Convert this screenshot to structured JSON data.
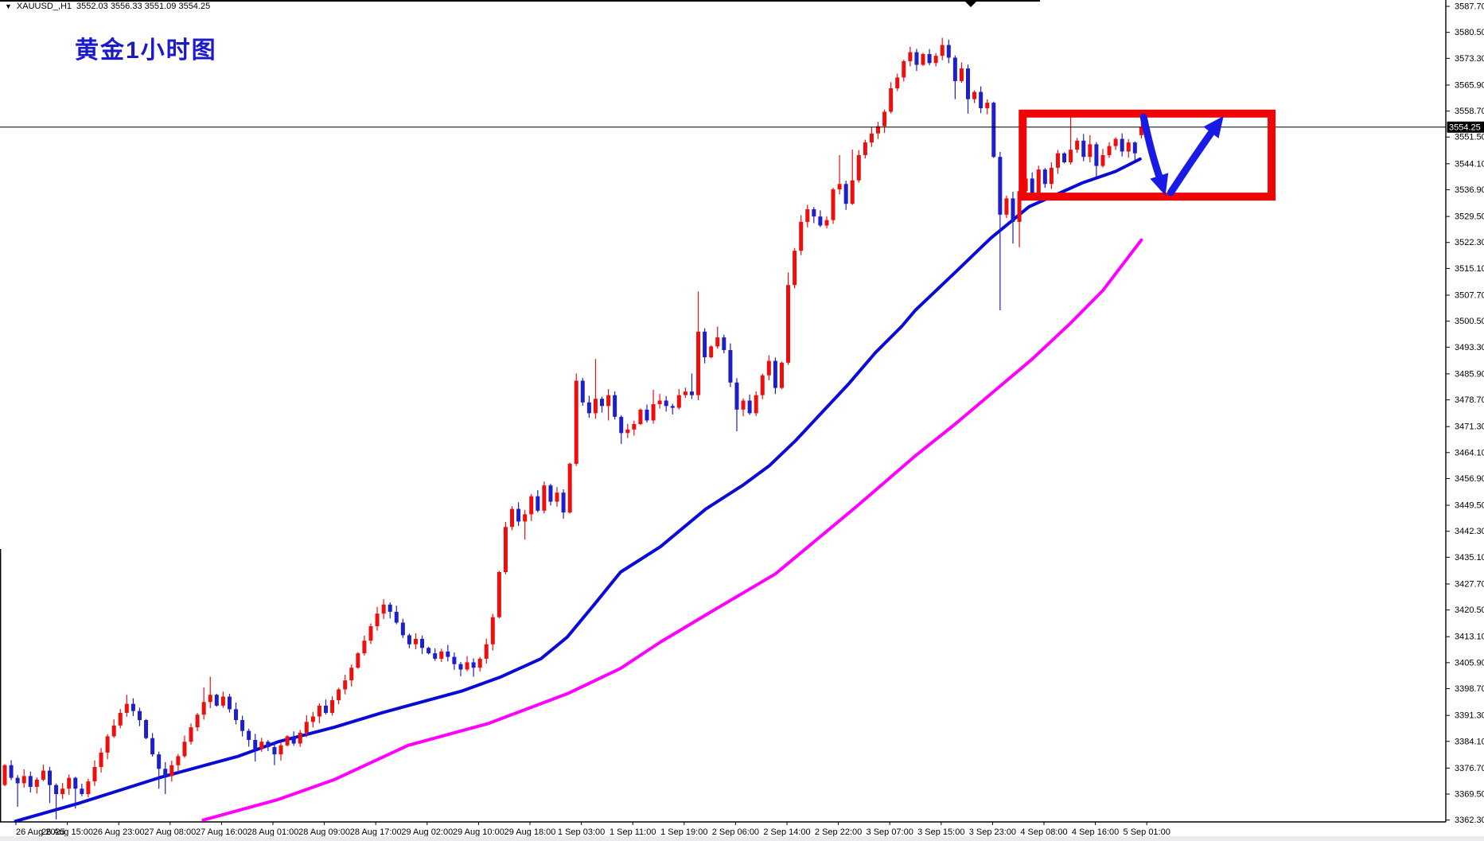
{
  "window": {
    "symbol": "XAUUSD_,H1",
    "ohlc_text": "3552.03 3556.33 3551.09 3554.25",
    "title_annotation": "黄金1小时图",
    "current_price": "3554.25",
    "dropdown_icon": "▼"
  },
  "axes": {
    "price_ticks": [
      "3587.70",
      "3580.50",
      "3573.30",
      "3565.90",
      "3558.70",
      "3551.50",
      "3544.10",
      "3536.90",
      "3529.50",
      "3522.30",
      "3515.10",
      "3507.70",
      "3500.50",
      "3493.30",
      "3485.90",
      "3478.70",
      "3471.30",
      "3464.10",
      "3456.90",
      "3449.50",
      "3442.30",
      "3435.10",
      "3427.70",
      "3420.50",
      "3413.10",
      "3405.90",
      "3398.70",
      "3391.30",
      "3384.10",
      "3376.70",
      "3369.50",
      "3362.30"
    ],
    "time_labels": [
      "26 Aug 2025",
      "26 Aug 15:00",
      "26 Aug 23:00",
      "27 Aug 08:00",
      "27 Aug 16:00",
      "28 Aug 01:00",
      "28 Aug 09:00",
      "28 Aug 17:00",
      "29 Aug 02:00",
      "29 Aug 10:00",
      "29 Aug 18:00",
      "1 Sep 03:00",
      "1 Sep 11:00",
      "1 Sep 19:00",
      "2 Sep 06:00",
      "2 Sep 14:00",
      "2 Sep 22:00",
      "3 Sep 07:00",
      "3 Sep 15:00",
      "3 Sep 23:00",
      "4 Sep 08:00",
      "4 Sep 16:00",
      "5 Sep 01:00"
    ]
  },
  "chart_data": {
    "type": "candlestick",
    "symbol": "XAUUSD",
    "timeframe": "H1",
    "title": "黄金1小时图",
    "price_axis_range": [
      3362.3,
      3587.7
    ],
    "grid": false,
    "first_open": 3372.0,
    "closes": [
      3377.5,
      3374,
      3372.5,
      3374.5,
      3371.5,
      3373.5,
      3376,
      3372,
      3369.5,
      3371,
      3374,
      3371,
      3369.5,
      3373,
      3377,
      3381,
      3385.5,
      3388.5,
      3392,
      3394.5,
      3392.5,
      3390,
      3385,
      3380.5,
      3376.5,
      3374.5,
      3377.5,
      3380,
      3384,
      3388,
      3391.5,
      3395,
      3397,
      3394,
      3396.5,
      3393,
      3390,
      3387,
      3384.5,
      3382,
      3384,
      3382.5,
      3380.5,
      3383,
      3385.5,
      3383.5,
      3386.5,
      3389.5,
      3391,
      3394,
      3392,
      3395.5,
      3398.5,
      3401,
      3404.5,
      3408.5,
      3412,
      3416,
      3419.5,
      3422,
      3420,
      3417,
      3413.5,
      3411,
      3412.5,
      3410,
      3408.5,
      3407,
      3409,
      3407.5,
      3405.5,
      3404,
      3406,
      3404.5,
      3407,
      3411,
      3418.5,
      3431,
      3443.5,
      3448.5,
      3445,
      3447,
      3452,
      3448,
      3455,
      3450.5,
      3453,
      3447.5,
      3461,
      3484,
      3478,
      3475,
      3479,
      3477,
      3480,
      3474,
      3469.5,
      3470.5,
      3472,
      3476,
      3473,
      3477.5,
      3478.5,
      3477,
      3476.5,
      3480,
      3481,
      3480,
      3497.6,
      3490.5,
      3493.5,
      3496,
      3492.5,
      3483.5,
      3476,
      3478.5,
      3475,
      3480,
      3485.5,
      3489.5,
      3482,
      3489,
      3510.5,
      3520,
      3528,
      3531.5,
      3529.5,
      3527,
      3528.5,
      3537,
      3538.5,
      3533,
      3539.5,
      3546.5,
      3550,
      3552.5,
      3554.5,
      3558.5,
      3565,
      3568,
      3572.5,
      3575,
      3571.5,
      3574.5,
      3572,
      3574,
      3577,
      3573.5,
      3567,
      3570.5,
      3562,
      3564,
      3559.5,
      3561,
      3546,
      3530,
      3534.5,
      3528,
      3536.5,
      3540,
      3536,
      3542.5,
      3538.5,
      3543,
      3547,
      3544.5,
      3548,
      3550.5,
      3546,
      3549.5,
      3543.5,
      3546.5,
      3549,
      3551,
      3547.5,
      3550,
      3547,
      3554.25
    ],
    "high_overrides": {
      "19": 3397,
      "31": 3399,
      "32": 3402,
      "59": 3423.5,
      "89": 3486,
      "92": 3490,
      "101": 3481.5,
      "107": 3486,
      "108": 3508.7,
      "111": 3499,
      "122": 3514,
      "130": 3546.5,
      "132": 3548,
      "141": 3576.5,
      "146": 3579,
      "147": 3578.5,
      "166": 3558.5,
      "169": 3552
    },
    "low_overrides": {
      "2": 3366,
      "7": 3367,
      "8": 3362.5,
      "11": 3365.5,
      "24": 3371,
      "25": 3369.5,
      "39": 3378.5,
      "42": 3377.5,
      "73": 3402,
      "81": 3440,
      "94": 3473,
      "96": 3466.5,
      "114": 3470,
      "148": 3562,
      "150": 3558,
      "155": 3503.5,
      "157": 3522,
      "158": 3521,
      "170": 3540.5,
      "176": 3545
    },
    "last_bar_ohlc": [
      3552.03,
      3556.33,
      3551.09,
      3554.25
    ],
    "current_price": 3554.25,
    "ma_fast_blue": [
      [
        1.7,
        3362
      ],
      [
        11.6,
        3367
      ],
      [
        24,
        3374
      ],
      [
        36.4,
        3380
      ],
      [
        42.6,
        3384
      ],
      [
        51.3,
        3388
      ],
      [
        58.7,
        3392
      ],
      [
        71.1,
        3398
      ],
      [
        77.3,
        3402
      ],
      [
        83.5,
        3407
      ],
      [
        87.6,
        3413
      ],
      [
        91.8,
        3422
      ],
      [
        95.9,
        3431
      ],
      [
        102.1,
        3438
      ],
      [
        109.2,
        3448.5
      ],
      [
        114.9,
        3455
      ],
      [
        119.1,
        3460.5
      ],
      [
        123.2,
        3467.5
      ],
      [
        127.3,
        3475.3
      ],
      [
        131.5,
        3483.3
      ],
      [
        135.6,
        3491.8
      ],
      [
        139.7,
        3499.1
      ],
      [
        141.8,
        3503.5
      ],
      [
        148.3,
        3514.5
      ],
      [
        153.5,
        3523.4
      ],
      [
        159.5,
        3532.2
      ],
      [
        167.8,
        3538.8
      ],
      [
        173,
        3542
      ],
      [
        176.8,
        3545.4
      ]
    ],
    "ma_slow_magenta": [
      [
        30.9,
        3362.3
      ],
      [
        42.6,
        3368
      ],
      [
        51.3,
        3373.5
      ],
      [
        62.8,
        3383
      ],
      [
        75.2,
        3389
      ],
      [
        87.6,
        3397.3
      ],
      [
        95.9,
        3404.3
      ],
      [
        102.1,
        3411.6
      ],
      [
        110,
        3420
      ],
      [
        120,
        3430.5
      ],
      [
        132.2,
        3448.5
      ],
      [
        137.7,
        3456.9
      ],
      [
        141.8,
        3463.2
      ],
      [
        148,
        3472
      ],
      [
        154,
        3481
      ],
      [
        160,
        3490
      ],
      [
        166,
        3500
      ],
      [
        171,
        3509
      ],
      [
        174,
        3516
      ],
      [
        177,
        3523
      ]
    ],
    "annotations": {
      "rectangle": {
        "bar_start": 157.9,
        "bar_end": 197.9,
        "price_top": 3559.1,
        "price_bottom": 3533.9,
        "stroke_width": 10,
        "color": "#ef0505"
      },
      "arrow_down": {
        "points": [
          [
            177.35,
            3557.0
          ],
          [
            178.6,
            3546.5
          ],
          [
            180.0,
            3539.5
          ]
        ],
        "tip": [
          180.75,
          3535.3
        ],
        "color": "#1a1ae6"
      },
      "arrow_up": {
        "points": [
          [
            181.6,
            3536.2
          ],
          [
            185.0,
            3545.5
          ],
          [
            188.6,
            3554.5
          ]
        ],
        "tip": [
          189.8,
          3557.3
        ],
        "color": "#1a1ae6"
      },
      "current_price_line": 3554.25,
      "scroll_marker_x_bar": 150.4
    },
    "colors": {
      "up": "#ed0e0e",
      "down": "#1f1fc8",
      "ma_fast": "#0a0ad6",
      "ma_slow": "#ff00ff",
      "price_line": "#000000",
      "price_tag_bg": "#000000",
      "price_tag_text": "#ffffff",
      "annotation_red": "#ef0505",
      "annotation_blue": "#1a1ae6"
    }
  }
}
